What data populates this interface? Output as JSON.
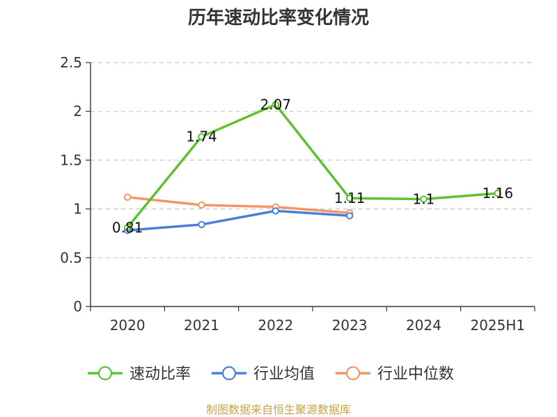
{
  "chart_data": {
    "type": "line",
    "title": "历年速动比率变化情况",
    "xlabel": "",
    "ylabel": "",
    "categories": [
      "2020",
      "2021",
      "2022",
      "2023",
      "2024",
      "2025H1"
    ],
    "yticks": [
      "0",
      "0.5",
      "1",
      "1.5",
      "2",
      "2.5"
    ],
    "ylim": [
      0,
      2.5
    ],
    "grid": true,
    "legend_position": "bottom",
    "series": [
      {
        "name": "速动比率",
        "color": "#5cc22e",
        "values": [
          0.81,
          1.74,
          2.07,
          1.11,
          1.1,
          1.16
        ],
        "labels": [
          "0.81",
          "1.74",
          "2.07",
          "1.11",
          "1.1",
          "1.16"
        ]
      },
      {
        "name": "行业均值",
        "color": "#4a7fd6",
        "values": [
          0.78,
          0.84,
          0.98,
          0.93,
          null,
          null
        ]
      },
      {
        "name": "行业中位数",
        "color": "#f59369",
        "values": [
          1.12,
          1.04,
          1.02,
          0.96,
          null,
          null
        ]
      }
    ]
  },
  "source": "制图数据来自恒生聚源数据库"
}
